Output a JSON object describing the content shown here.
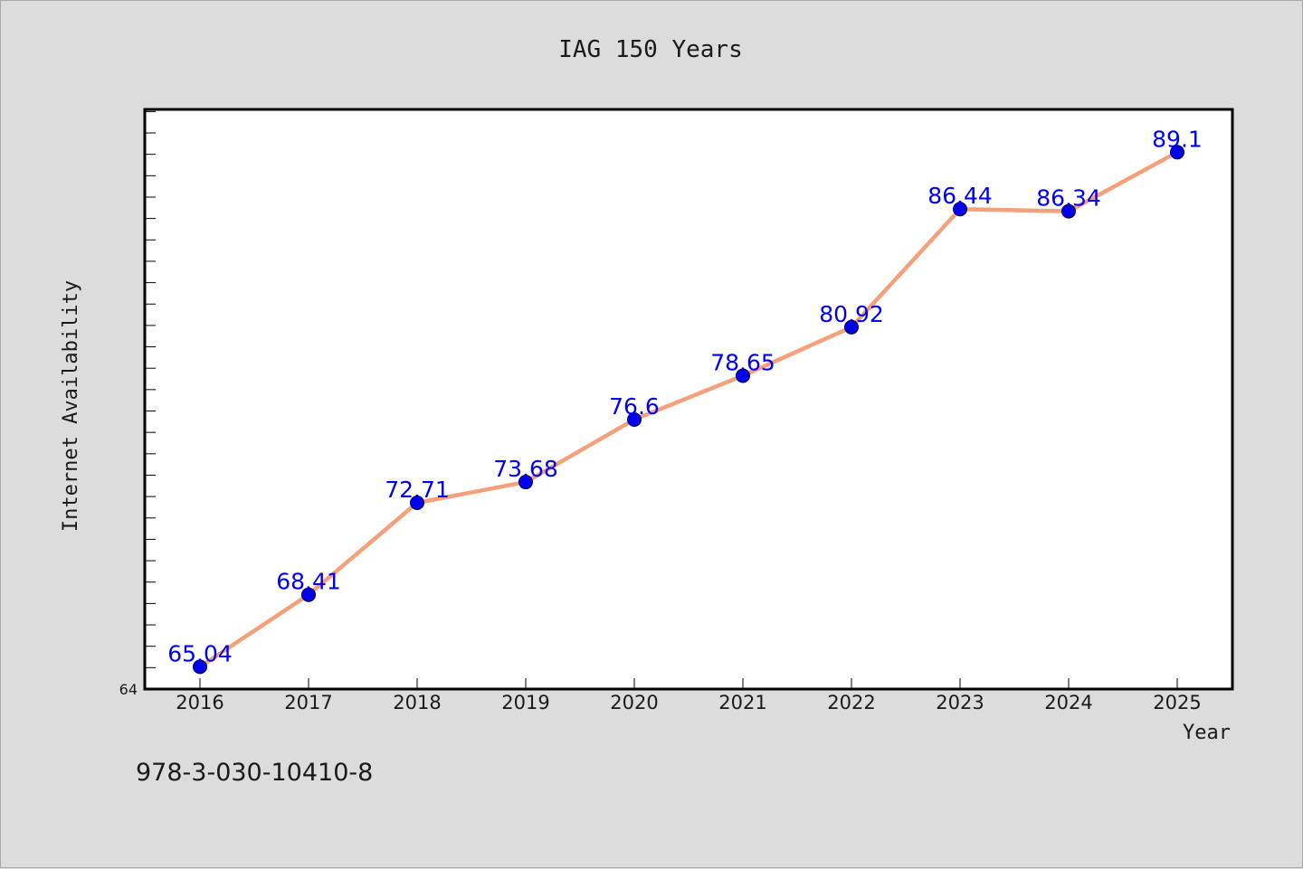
{
  "chart_data": {
    "type": "line",
    "title": "IAG 150 Years",
    "xlabel": "Year",
    "ylabel": "Internet Availability",
    "x": [
      "2016",
      "2017",
      "2018",
      "2019",
      "2020",
      "2021",
      "2022",
      "2023",
      "2024",
      "2025"
    ],
    "series": [
      {
        "values": [
          65.04,
          68.41,
          72.71,
          73.68,
          76.6,
          78.65,
          80.92,
          86.44,
          86.34,
          89.1
        ],
        "labels": [
          "65.04",
          "68.41",
          "72.71",
          "73.68",
          "76.6",
          "78.65",
          "80.92",
          "86.44",
          "86.34",
          "89.1"
        ]
      }
    ],
    "ylim": [
      64,
      91.1
    ],
    "y_tick_labels": [
      "64"
    ],
    "grid": false,
    "legend": "none",
    "colors": {
      "line": "#f4a07a",
      "marker": "#0000ee",
      "data_label": "#0000ee",
      "plot_background": "#ffffff",
      "frame": "#000000",
      "page_background": "#dcdcdc"
    }
  },
  "footer": {
    "isbn": "978-3-030-10410-8"
  }
}
